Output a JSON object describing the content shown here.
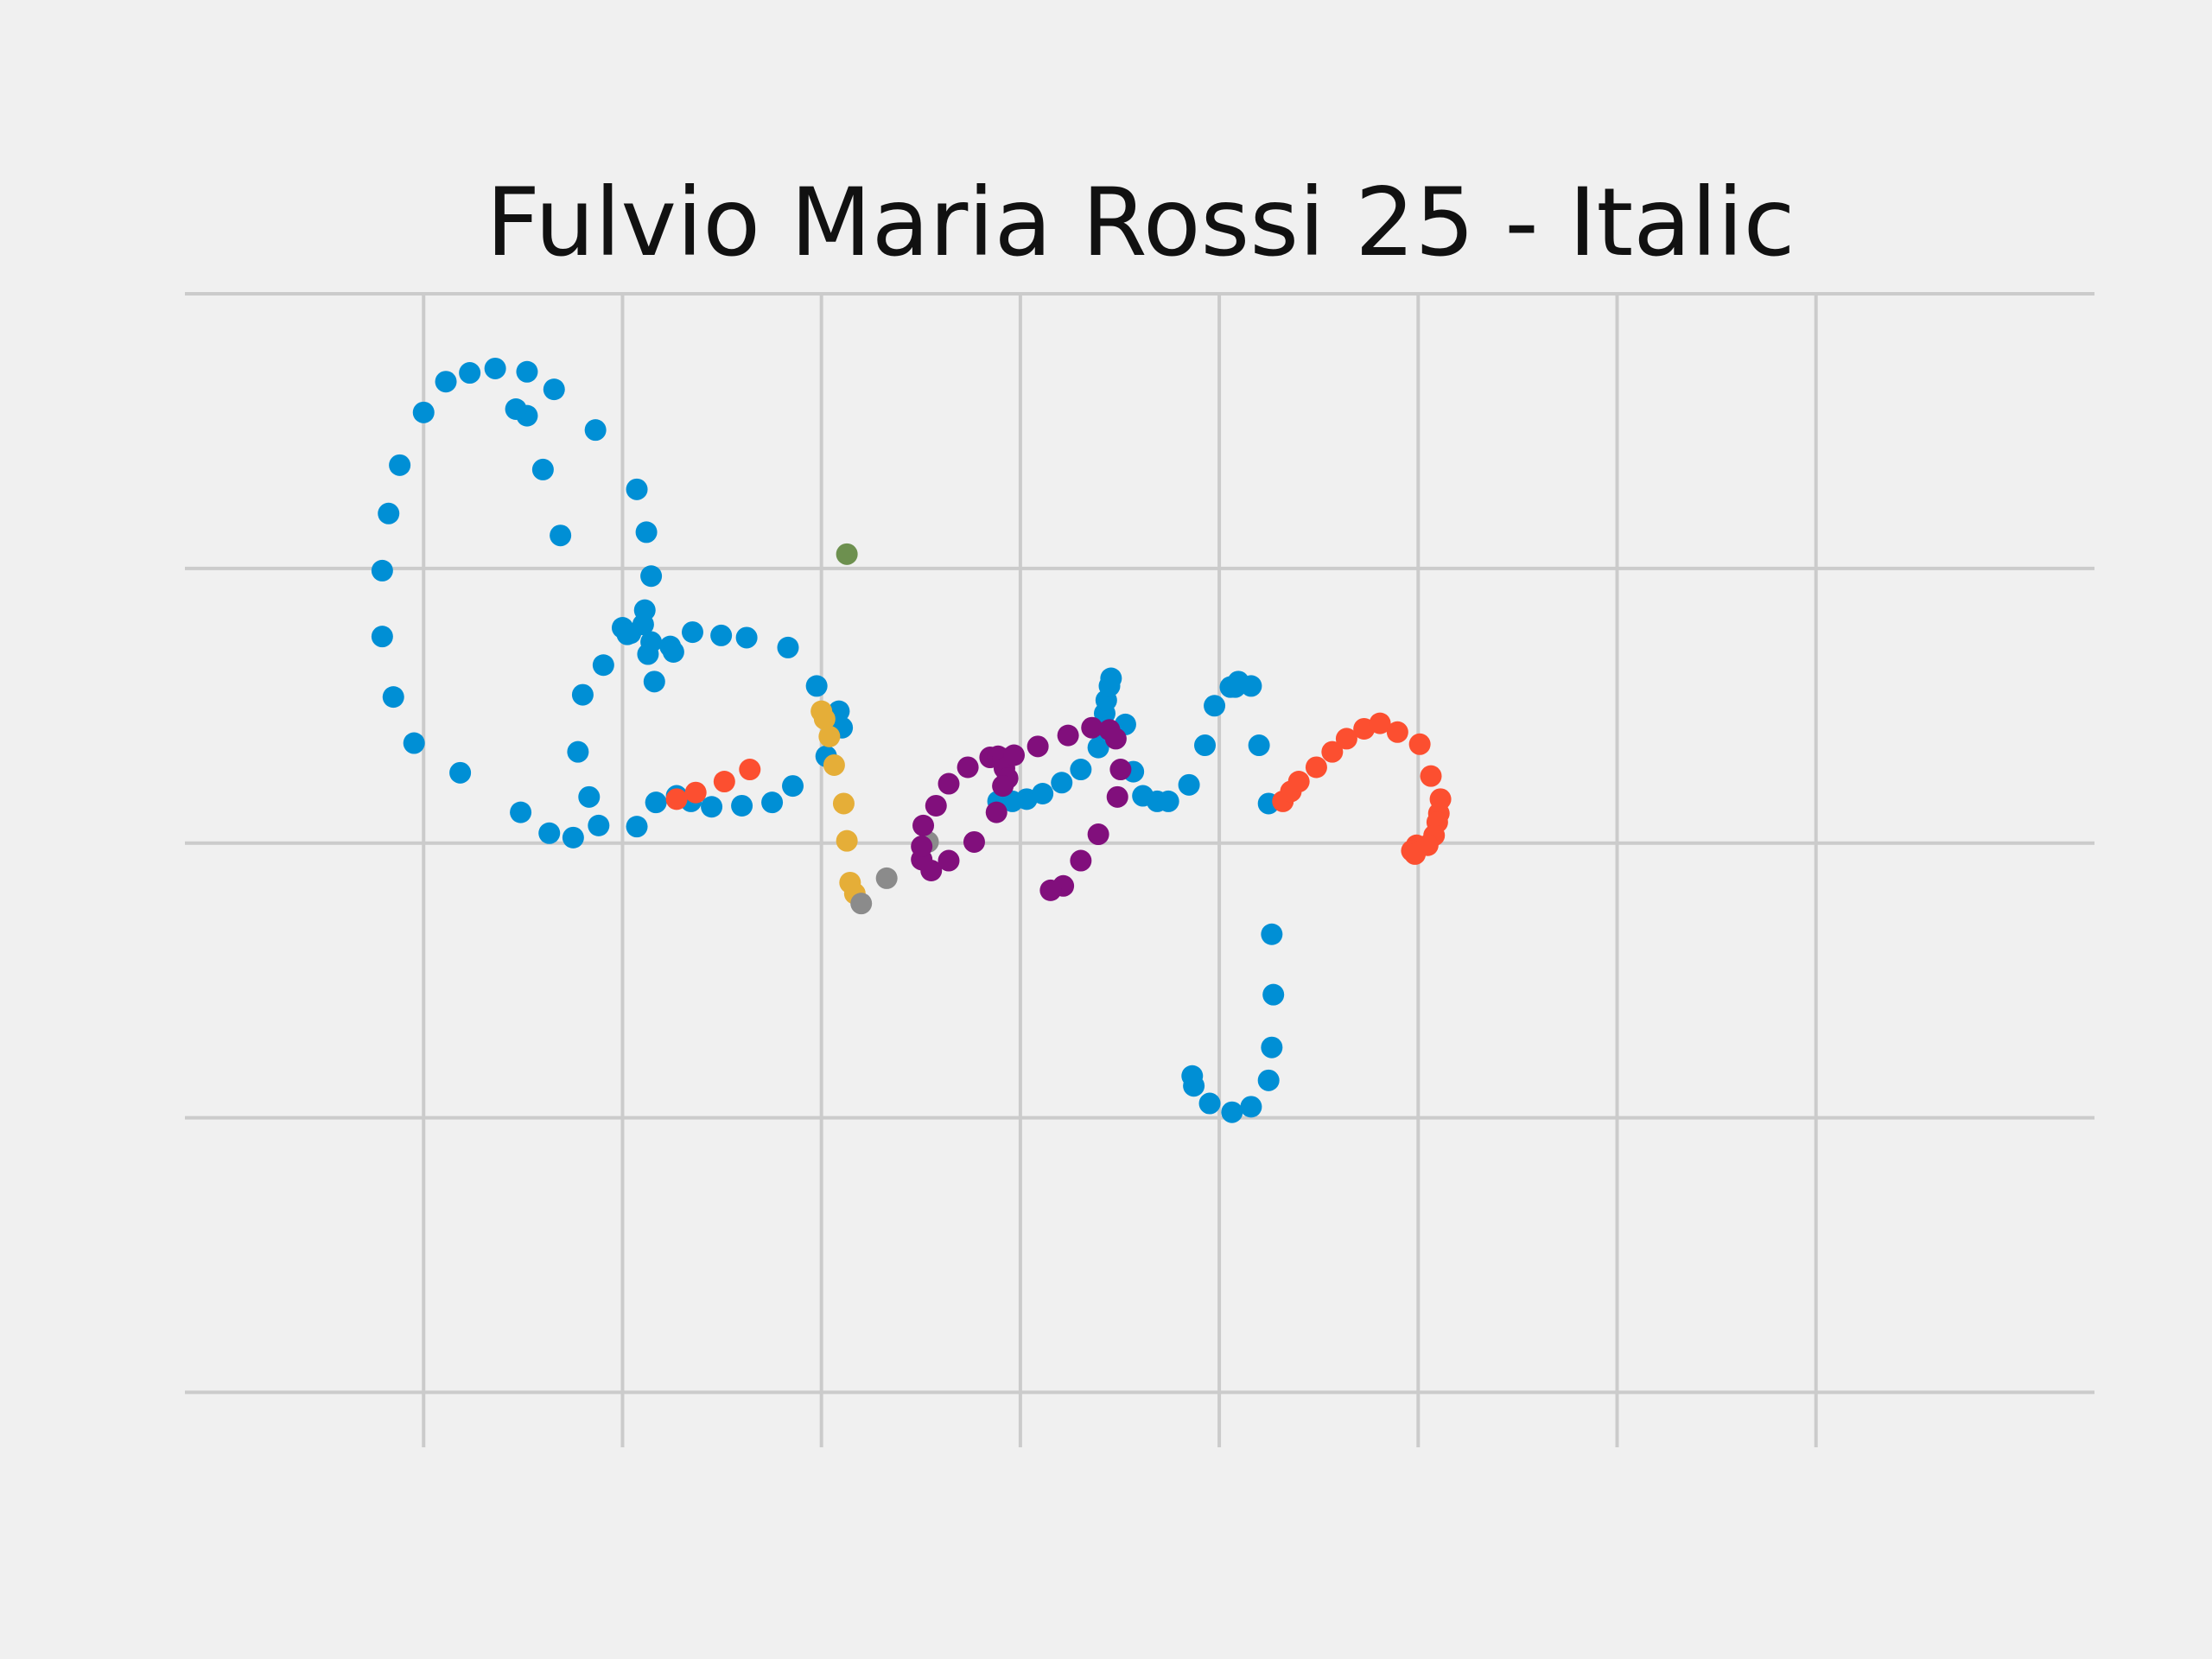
{
  "chart_data": {
    "type": "scatter",
    "title": "Fulvio Maria Rossi 25 - Italic",
    "xlabel": "",
    "ylabel": "",
    "xlim": [
      -0.15,
      1.05
    ],
    "ylim": [
      -0.55,
      0.5
    ],
    "x_grid_values": [
      0.0,
      0.125,
      0.25,
      0.375,
      0.5,
      0.625,
      0.75,
      0.875
    ],
    "y_grid_values": [
      -0.5,
      -0.25,
      0.0,
      0.25,
      0.5
    ],
    "grid": true,
    "tick_labels_visible": false,
    "legend": "none",
    "colors": {
      "background": "#f0f0f0",
      "grid": "#cbcbcb",
      "title": "#111111"
    },
    "series": [
      {
        "color": "#008fd5",
        "points": [
          [
            0.125,
            0.196
          ],
          [
            0.13,
            0.191
          ],
          [
            0.138,
            0.199
          ],
          [
            0.143,
            0.183
          ],
          [
            0.141,
            0.172
          ],
          [
            0.145,
            0.147
          ],
          [
            0.155,
            0.179
          ],
          [
            0.157,
            0.174
          ],
          [
            0.169,
            0.192
          ],
          [
            0.187,
            0.189
          ],
          [
            0.203,
            0.187
          ],
          [
            0.229,
            0.178
          ],
          [
            0.247,
            0.143
          ],
          [
            0.261,
            0.12
          ],
          [
            0.263,
            0.105
          ],
          [
            0.253,
            0.079
          ],
          [
            0.232,
            0.052
          ],
          [
            0.219,
            0.037
          ],
          [
            0.2,
            0.034
          ],
          [
            0.181,
            0.033
          ],
          [
            0.168,
            0.038
          ],
          [
            0.159,
            0.043
          ],
          [
            0.146,
            0.037
          ],
          [
            0.134,
            0.015
          ],
          [
            0.094,
            0.005
          ],
          [
            0.079,
            0.009
          ],
          [
            0.061,
            0.028
          ],
          [
            0.023,
            0.064
          ],
          [
            -0.006,
            0.091
          ],
          [
            -0.019,
            0.133
          ],
          [
            -0.026,
            0.188
          ],
          [
            -0.026,
            0.248
          ],
          [
            -0.022,
            0.3
          ],
          [
            -0.015,
            0.344
          ],
          [
            0.0,
            0.392
          ],
          [
            0.014,
            0.42
          ],
          [
            0.029,
            0.428
          ],
          [
            0.045,
            0.432
          ],
          [
            0.065,
            0.429
          ],
          [
            0.082,
            0.413
          ],
          [
            0.108,
            0.376
          ],
          [
            0.134,
            0.322
          ],
          [
            0.14,
            0.283
          ],
          [
            0.143,
            0.243
          ],
          [
            0.139,
            0.212
          ],
          [
            0.128,
            0.19
          ],
          [
            0.113,
            0.162
          ],
          [
            0.1,
            0.135
          ],
          [
            0.097,
            0.083
          ],
          [
            0.104,
            0.042
          ],
          [
            0.11,
            0.016
          ],
          [
            0.086,
            0.28
          ],
          [
            0.075,
            0.34
          ],
          [
            0.065,
            0.389
          ],
          [
            0.058,
            0.395
          ],
          [
            0.361,
            0.038
          ],
          [
            0.37,
            0.038
          ],
          [
            0.379,
            0.04
          ],
          [
            0.389,
            0.045
          ],
          [
            0.401,
            0.055
          ],
          [
            0.413,
            0.067
          ],
          [
            0.424,
            0.087
          ],
          [
            0.429,
            0.103
          ],
          [
            0.428,
            0.118
          ],
          [
            0.429,
            0.13
          ],
          [
            0.431,
            0.143
          ],
          [
            0.432,
            0.15
          ],
          [
            0.441,
            0.108
          ],
          [
            0.446,
            0.065
          ],
          [
            0.452,
            0.043
          ],
          [
            0.461,
            0.038
          ],
          [
            0.468,
            0.038
          ],
          [
            0.481,
            0.053
          ],
          [
            0.491,
            0.089
          ],
          [
            0.497,
            0.125
          ],
          [
            0.507,
            0.142
          ],
          [
            0.51,
            0.142
          ],
          [
            0.512,
            0.147
          ],
          [
            0.52,
            0.143
          ],
          [
            0.525,
            0.089
          ],
          [
            0.531,
            0.036
          ],
          [
            0.533,
            -0.083
          ],
          [
            0.534,
            -0.138
          ],
          [
            0.533,
            -0.186
          ],
          [
            0.531,
            -0.216
          ],
          [
            0.52,
            -0.24
          ],
          [
            0.508,
            -0.245
          ],
          [
            0.494,
            -0.237
          ],
          [
            0.484,
            -0.221
          ],
          [
            0.483,
            -0.212
          ]
        ]
      },
      {
        "color": "#fc4f30",
        "points": [
          [
            0.159,
            0.04
          ],
          [
            0.171,
            0.046
          ],
          [
            0.189,
            0.056
          ],
          [
            0.205,
            0.067
          ],
          [
            0.54,
            0.038
          ],
          [
            0.545,
            0.047
          ],
          [
            0.55,
            0.056
          ],
          [
            0.561,
            0.069
          ],
          [
            0.571,
            0.083
          ],
          [
            0.58,
            0.095
          ],
          [
            0.591,
            0.104
          ],
          [
            0.601,
            0.109
          ],
          [
            0.612,
            0.101
          ],
          [
            0.626,
            0.09
          ],
          [
            0.633,
            0.061
          ],
          [
            0.639,
            0.04
          ],
          [
            0.638,
            0.027
          ],
          [
            0.637,
            0.019
          ],
          [
            0.635,
            0.007
          ],
          [
            0.631,
            -0.002
          ],
          [
            0.624,
            -0.002
          ],
          [
            0.621,
            -0.007
          ],
          [
            0.623,
            -0.01
          ]
        ]
      },
      {
        "color": "#e5ae38",
        "points": [
          [
            0.25,
            0.12
          ],
          [
            0.252,
            0.113
          ],
          [
            0.255,
            0.097
          ],
          [
            0.258,
            0.071
          ],
          [
            0.264,
            0.036
          ],
          [
            0.266,
            0.002
          ],
          [
            0.268,
            -0.036
          ],
          [
            0.271,
            -0.046
          ]
        ]
      },
      {
        "color": "#6d904f",
        "points": [
          [
            0.266,
            0.263
          ]
        ]
      },
      {
        "color": "#8b8b8b",
        "points": [
          [
            0.275,
            -0.055
          ],
          [
            0.291,
            -0.032
          ],
          [
            0.317,
            0.001
          ]
        ]
      },
      {
        "color": "#810f7c",
        "points": [
          [
            0.314,
            0.016
          ],
          [
            0.322,
            0.034
          ],
          [
            0.33,
            0.054
          ],
          [
            0.342,
            0.069
          ],
          [
            0.356,
            0.078
          ],
          [
            0.361,
            0.079
          ],
          [
            0.364,
            0.077
          ],
          [
            0.365,
            0.068
          ],
          [
            0.367,
            0.059
          ],
          [
            0.364,
            0.052
          ],
          [
            0.36,
            0.028
          ],
          [
            0.346,
            0.001
          ],
          [
            0.33,
            -0.016
          ],
          [
            0.319,
            -0.025
          ],
          [
            0.313,
            -0.015
          ],
          [
            0.313,
            -0.003
          ],
          [
            0.371,
            0.08
          ],
          [
            0.386,
            0.088
          ],
          [
            0.405,
            0.098
          ],
          [
            0.42,
            0.105
          ],
          [
            0.431,
            0.103
          ],
          [
            0.435,
            0.095
          ],
          [
            0.438,
            0.067
          ],
          [
            0.436,
            0.042
          ],
          [
            0.424,
            0.008
          ],
          [
            0.413,
            -0.016
          ],
          [
            0.402,
            -0.039
          ],
          [
            0.394,
            -0.043
          ]
        ]
      }
    ]
  }
}
